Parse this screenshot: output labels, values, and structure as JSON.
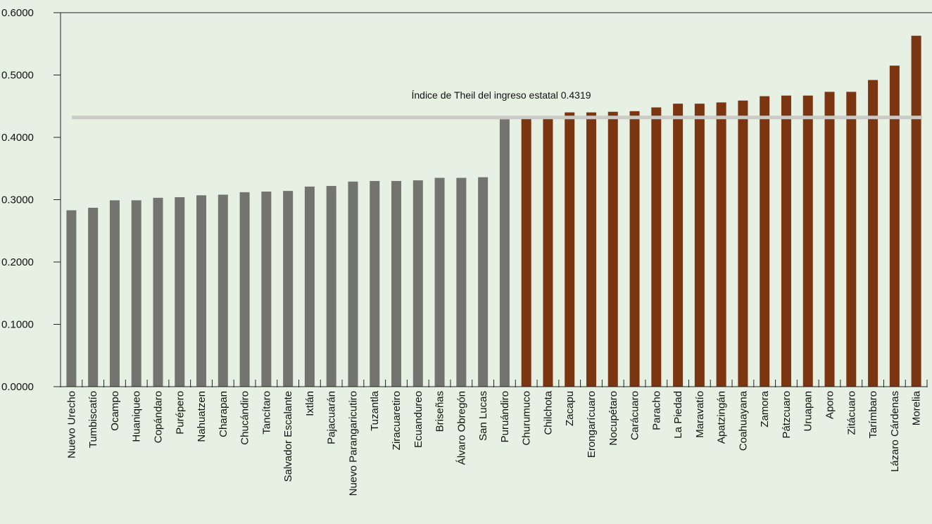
{
  "chart_data": {
    "type": "bar",
    "ylim": [
      0,
      0.6
    ],
    "yticks": [
      "0.0000",
      "0.1000",
      "0.2000",
      "0.3000",
      "0.4000",
      "0.5000",
      "0.6000"
    ],
    "grid": false,
    "categories": [
      "Nuevo Urecho",
      "Tumbiscatío",
      "Ocampo",
      "Huaniqueo",
      "Copándaro",
      "Purépero",
      "Nahuatzen",
      "Charapan",
      "Chucándiro",
      "Tancítaro",
      "Salvador Escalante",
      "Ixtlán",
      "Pajacuarán",
      "Nuevo Parangaricutiro",
      "Tuzantla",
      "Ziracuaretiro",
      "Ecuandureo",
      "Briseñas",
      "Álvaro Obregón",
      "San Lucas",
      "Puruándiro",
      "Churumuco",
      "Chilchota",
      "Zacapu",
      "Erongarícuaro",
      "Nocupétaro",
      "Carácuaro",
      "Paracho",
      "La Piedad",
      "Maravatío",
      "Apatzingán",
      "Coahuayana",
      "Zamora",
      "Pátzcuaro",
      "Uruapan",
      "Aporo",
      "Zitácuaro",
      "Tarímbaro",
      "Lázaro Cárdenas",
      "Morelia"
    ],
    "values": [
      0.283,
      0.287,
      0.299,
      0.299,
      0.303,
      0.304,
      0.307,
      0.308,
      0.312,
      0.313,
      0.314,
      0.321,
      0.322,
      0.329,
      0.33,
      0.33,
      0.331,
      0.335,
      0.335,
      0.336,
      0.429,
      0.432,
      0.433,
      0.44,
      0.44,
      0.441,
      0.442,
      0.448,
      0.454,
      0.454,
      0.456,
      0.459,
      0.466,
      0.467,
      0.467,
      0.473,
      0.473,
      0.492,
      0.515,
      0.563
    ],
    "colors": {
      "below": "#73746f",
      "above": "#7b3510",
      "reference_line": "#c9cbc4",
      "background": "#e6f0e3"
    },
    "reference_line": {
      "value": 0.4319,
      "label": "Índice de Theil del ingreso estatal 0.4319"
    }
  }
}
